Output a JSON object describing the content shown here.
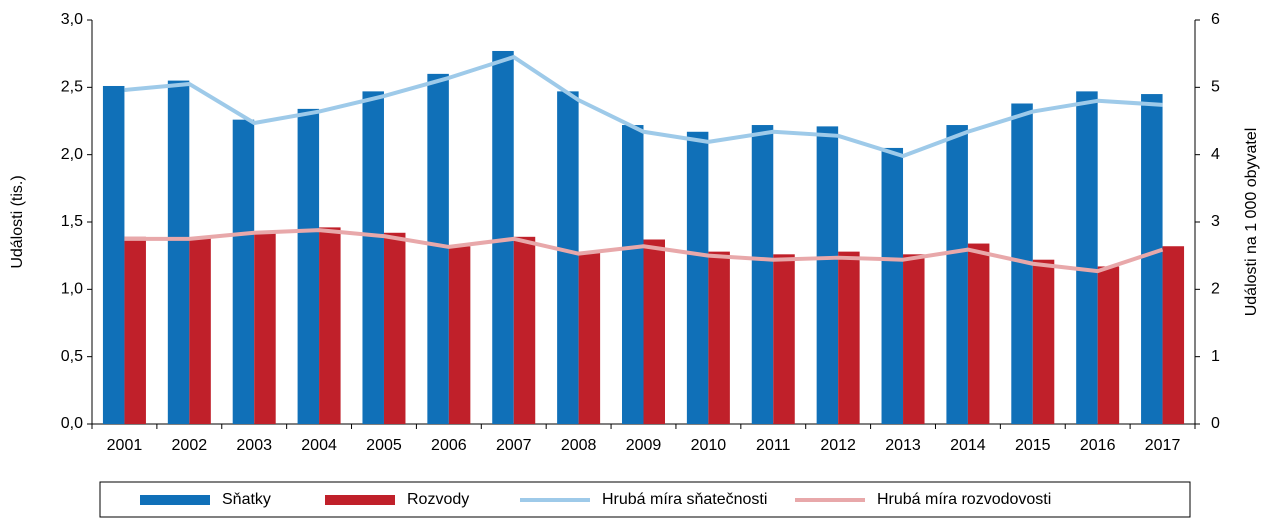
{
  "chart_data": {
    "type": "bar",
    "categories": [
      "2001",
      "2002",
      "2003",
      "2004",
      "2005",
      "2006",
      "2007",
      "2008",
      "2009",
      "2010",
      "2011",
      "2012",
      "2013",
      "2014",
      "2015",
      "2016",
      "2017"
    ],
    "ylabel": "Události (tis.)",
    "y2label": "Události na 1 000 obyvatel",
    "ylim": [
      0,
      3
    ],
    "yticks": [
      {
        "value": 0,
        "label": "0,0"
      },
      {
        "value": 0.5,
        "label": "0,5"
      },
      {
        "value": 1,
        "label": "1,0"
      },
      {
        "value": 1.5,
        "label": "1,5"
      },
      {
        "value": 2,
        "label": "2,0"
      },
      {
        "value": 2.5,
        "label": "2,5"
      },
      {
        "value": 3,
        "label": "3,0"
      }
    ],
    "y2lim": [
      0,
      6
    ],
    "y2ticks": [
      0,
      1,
      2,
      3,
      4,
      5,
      6
    ],
    "series": [
      {
        "name": "Sňatky",
        "type": "bar",
        "color": "#1070b8",
        "values": [
          2.51,
          2.55,
          2.26,
          2.34,
          2.47,
          2.6,
          2.77,
          2.47,
          2.22,
          2.17,
          2.22,
          2.21,
          2.05,
          2.22,
          2.38,
          2.47,
          2.45
        ]
      },
      {
        "name": "Rozvody",
        "type": "bar",
        "color": "#c0202a",
        "values": [
          1.39,
          1.38,
          1.43,
          1.46,
          1.42,
          1.32,
          1.39,
          1.28,
          1.37,
          1.28,
          1.26,
          1.28,
          1.26,
          1.34,
          1.22,
          1.17,
          1.32
        ]
      },
      {
        "name": "Hrubá míra sňatečnosti",
        "type": "line",
        "axis": "y2",
        "color": "#9ecae9",
        "values": [
          4.96,
          5.05,
          4.47,
          4.64,
          4.87,
          5.14,
          5.45,
          4.81,
          4.34,
          4.19,
          4.34,
          4.28,
          3.98,
          4.34,
          4.64,
          4.8,
          4.74
        ]
      },
      {
        "name": "Hrubá míra rozvodovosti",
        "type": "line",
        "axis": "y2",
        "color": "#e8a8aa",
        "values": [
          2.75,
          2.75,
          2.84,
          2.88,
          2.79,
          2.63,
          2.75,
          2.53,
          2.64,
          2.5,
          2.44,
          2.47,
          2.44,
          2.59,
          2.38,
          2.27,
          2.59
        ]
      }
    ]
  }
}
